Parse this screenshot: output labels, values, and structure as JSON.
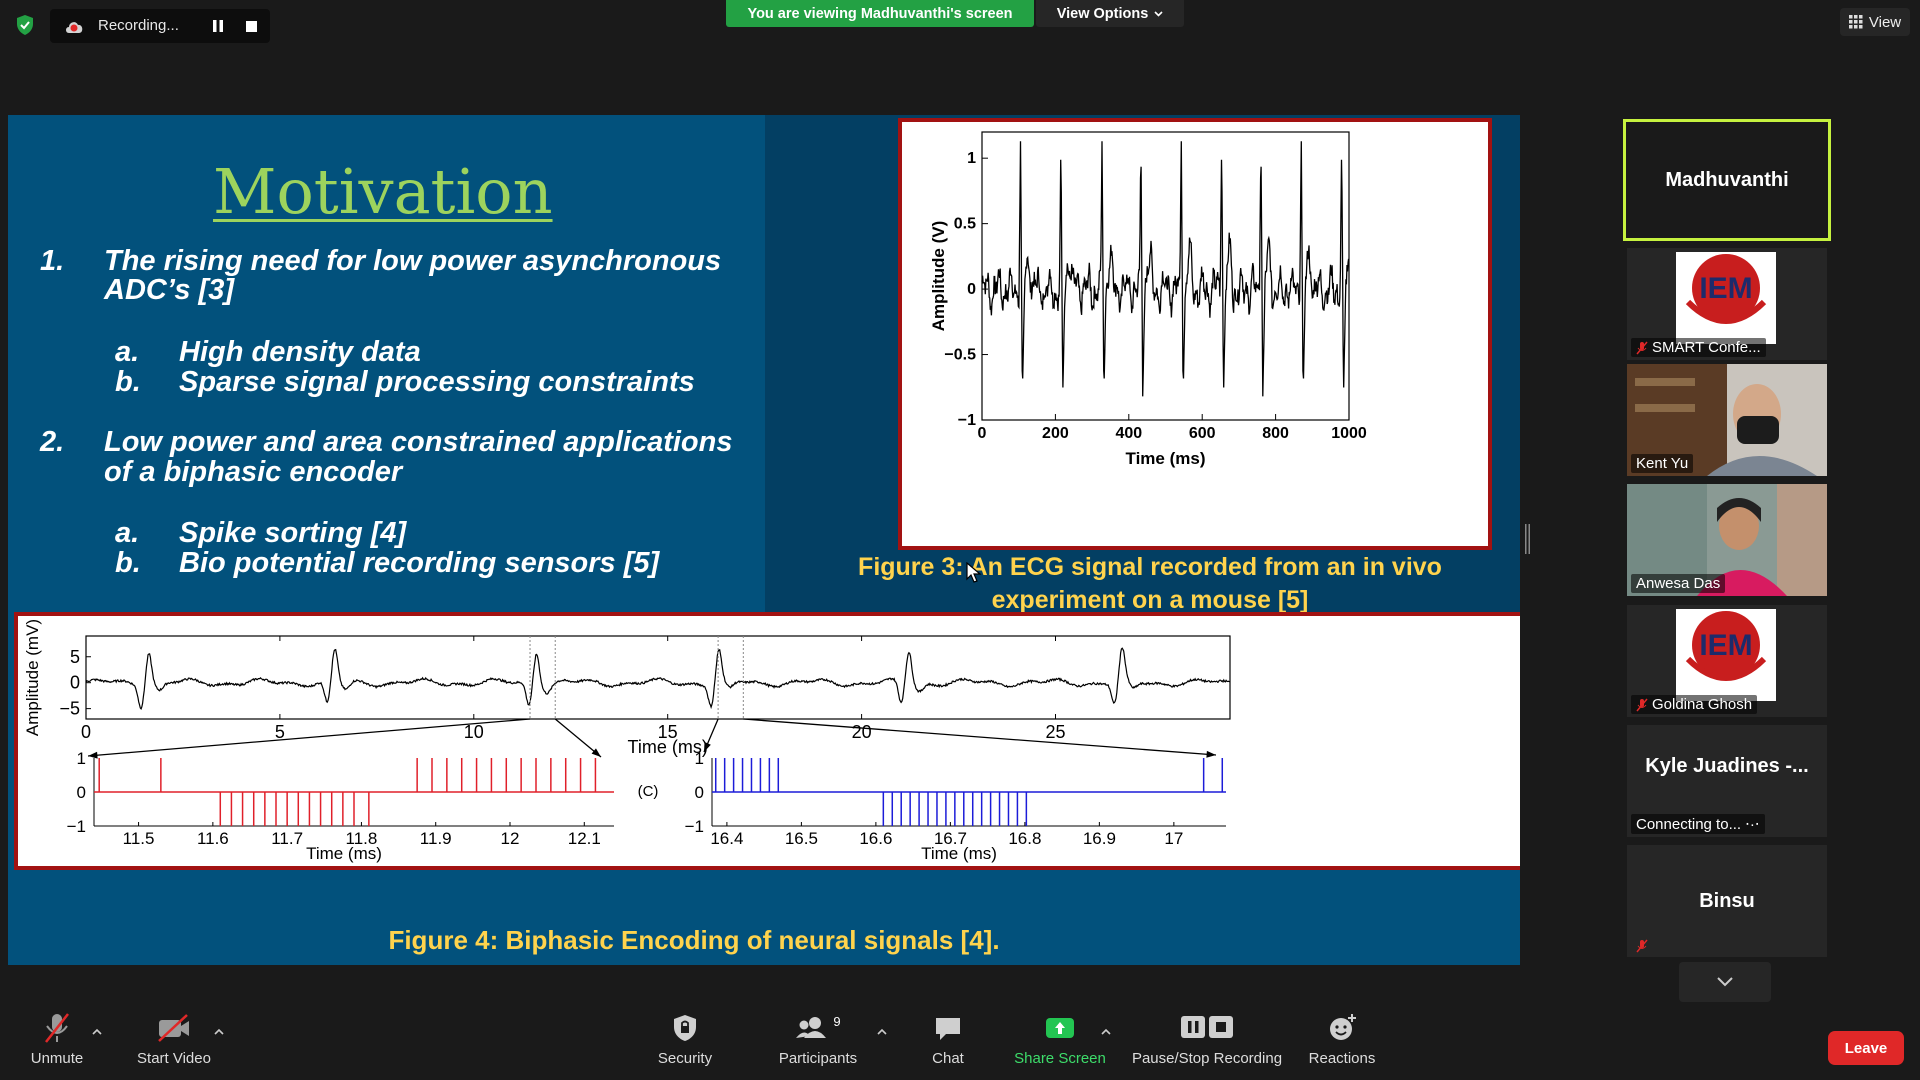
{
  "top_bar": {
    "recording_label": "Recording...",
    "viewing_banner": "You are viewing Madhuvanthi's screen",
    "view_options_label": "View Options",
    "view_label": "View"
  },
  "slide": {
    "title": "Motivation",
    "points": [
      {
        "num": "1.",
        "lines": [
          "The rising need for low power asynchronous",
          "ADC’s [3]"
        ],
        "sub": [
          {
            "letter": "a.",
            "text": "High density data"
          },
          {
            "letter": "b.",
            "text": "Sparse signal processing constraints"
          }
        ]
      },
      {
        "num": "2.",
        "lines": [
          "Low power  and area constrained applications",
          "of a biphasic encoder"
        ],
        "sub": [
          {
            "letter": "a.",
            "text": "Spike sorting [4]"
          },
          {
            "letter": "b.",
            "text": "Bio potential recording sensors [5]"
          }
        ]
      }
    ],
    "fig3_caption_line1": "Figure 3: An ECG signal recorded from an in vivo",
    "fig3_caption_line2": "experiment on a mouse [5]",
    "fig4_caption": "Figure 4: Biphasic Encoding of neural signals [4]."
  },
  "chart_data": [
    {
      "type": "line",
      "xlabel": "Time (ms)",
      "ylabel": "Amplitude (V)",
      "xlim": [
        0,
        1000
      ],
      "ylim": [
        -1,
        1.2
      ],
      "xticks": [
        0,
        200,
        400,
        600,
        800,
        1000
      ],
      "xtick_labels": [
        "0",
        "200",
        "400",
        "600",
        "800",
        "1000"
      ],
      "yticks": [
        -1,
        -0.5,
        0,
        0.5,
        1
      ],
      "ytick_labels": [
        "−1",
        "−0.5",
        "0",
        "0.5",
        "1"
      ],
      "spike_times": [
        105,
        215,
        327,
        433,
        543,
        653,
        760,
        870,
        980
      ],
      "spike_peak": 1.13,
      "spike_trough": -0.82
    },
    {
      "type": "line",
      "xlabel": "Time (ms)",
      "ylabel": "Amplitude (mV)",
      "xlim": [
        0,
        29.5
      ],
      "ylim": [
        -7,
        9
      ],
      "xticks": [
        0,
        5,
        10,
        15,
        20,
        25
      ],
      "xtick_labels": [
        "0",
        "5",
        "10",
        "15",
        "20",
        "25"
      ],
      "yticks": [
        5,
        0,
        -5
      ],
      "ytick_labels": [
        "5",
        "0",
        "−5"
      ],
      "spike_times": [
        1.7,
        6.5,
        11.7,
        16.4,
        21.3,
        26.8
      ]
    },
    {
      "type": "line",
      "xlabel": "Time (ms)",
      "xlim": [
        11.44,
        12.14
      ],
      "ylim": [
        -1,
        1
      ],
      "xticks": [
        11.5,
        11.6,
        11.7,
        11.8,
        11.9,
        12,
        12.1
      ],
      "xtick_labels": [
        "11.5",
        "11.6",
        "11.7",
        "11.8",
        "11.9",
        "12",
        "12.1"
      ],
      "yticks": [
        1,
        0,
        -1
      ],
      "ytick_labels": [
        "1",
        "0",
        "−1"
      ],
      "pos_pulses": [
        11.447,
        11.53,
        11.875,
        11.895,
        11.915,
        11.935,
        11.955,
        11.975,
        11.995,
        12.015,
        12.035,
        12.055,
        12.075,
        12.095,
        12.115
      ],
      "neg_pulses": [
        11.61,
        11.625,
        11.64,
        11.655,
        11.67,
        11.685,
        11.7,
        11.715,
        11.73,
        11.745,
        11.76,
        11.775,
        11.79,
        11.81
      ]
    },
    {
      "type": "line",
      "xlabel": "Time (ms)",
      "xlim": [
        16.38,
        17.07
      ],
      "ylim": [
        -1,
        1
      ],
      "xticks": [
        16.4,
        16.5,
        16.6,
        16.7,
        16.8,
        16.9,
        17
      ],
      "xtick_labels": [
        "16.4",
        "16.5",
        "16.6",
        "16.7",
        "16.8",
        "16.9",
        "17"
      ],
      "yticks": [
        1,
        0,
        -1
      ],
      "ytick_labels": [
        "1",
        "0",
        "−1"
      ],
      "annotation": "(C)",
      "pos_pulses": [
        16.385,
        16.397,
        16.409,
        16.421,
        16.433,
        16.445,
        16.457,
        16.469,
        17.04,
        17.065
      ],
      "neg_pulses": [
        16.61,
        16.622,
        16.634,
        16.646,
        16.658,
        16.67,
        16.682,
        16.694,
        16.706,
        16.718,
        16.73,
        16.742,
        16.754,
        16.766,
        16.778,
        16.79,
        16.802
      ]
    }
  ],
  "participants": [
    {
      "name": "Madhuvanthi"
    },
    {
      "name": "SMART Confe...",
      "logo": "IEM",
      "muted": true
    },
    {
      "name": "Kent Yu"
    },
    {
      "name": "Anwesa Das"
    },
    {
      "name": "Goldina Ghosh",
      "logo": "IEM",
      "muted": true
    },
    {
      "name": "Kyle  Juadines -...",
      "status": "Connecting to...",
      "connecting_icon": "⋅·⋅"
    },
    {
      "name": "Binsu",
      "muted": true
    }
  ],
  "toolbar": {
    "unmute": "Unmute",
    "start_video": "Start Video",
    "security": "Security",
    "participants": "Participants",
    "participants_count": "9",
    "chat": "Chat",
    "share_screen": "Share Screen",
    "pause_stop_recording": "Pause/Stop Recording",
    "reactions": "Reactions",
    "leave": "Leave"
  },
  "colors": {
    "accent_green": "#23a144",
    "active_speaker": "#c6f23f",
    "slide_bg": "#02517c",
    "caption_yellow": "#ffd34d",
    "title_green": "#9dd35d",
    "leave_red": "#e02828"
  }
}
